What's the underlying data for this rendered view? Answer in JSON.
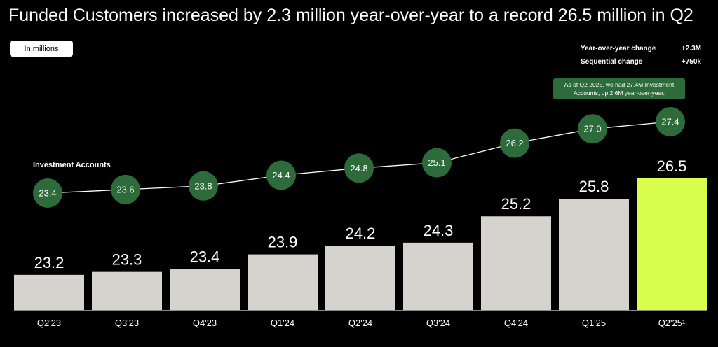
{
  "title": "Funded Customers increased by 2.3 million year-over-year to a record 26.5 million in Q2",
  "units_chip": "In millions",
  "changes": [
    {
      "label": "Year-over-year change",
      "value": "+2.3M"
    },
    {
      "label": "Sequential change",
      "value": "+750k"
    }
  ],
  "note": "As of Q2 2025, we had 27.4M Investment Accounts, up 2.6M year-over-year.",
  "colors": {
    "background": "#000000",
    "bar": "#d6d3ce",
    "highlight_bar": "#d9ff4d",
    "circle": "#2d6b3a",
    "line": "#ffffff"
  },
  "chart_data": {
    "type": "bar",
    "categories": [
      "Q2'23",
      "Q3'23",
      "Q4'23",
      "Q1'24",
      "Q2'24",
      "Q3'24",
      "Q4'24",
      "Q1'25",
      "Q2'25¹"
    ],
    "series": [
      {
        "name": "",
        "type": "bar",
        "values": [
          23.2,
          23.3,
          23.4,
          23.9,
          24.2,
          24.3,
          25.2,
          25.8,
          26.5
        ],
        "highlight_index": 8
      },
      {
        "name": "Investment Accounts",
        "type": "line",
        "values": [
          23.4,
          23.6,
          23.8,
          24.4,
          24.8,
          25.1,
          26.2,
          27.0,
          27.4
        ]
      }
    ],
    "ylim": [
      22.0,
      27.0
    ],
    "grid": false,
    "title": "Funded Customers increased by 2.3 million year-over-year to a record 26.5 million in Q2"
  }
}
